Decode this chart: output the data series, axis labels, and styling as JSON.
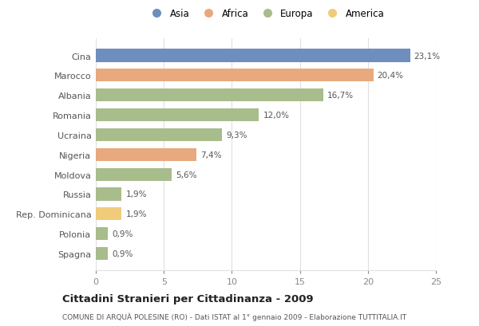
{
  "categories": [
    "Cina",
    "Marocco",
    "Albania",
    "Romania",
    "Ucraina",
    "Nigeria",
    "Moldova",
    "Russia",
    "Rep. Dominicana",
    "Polonia",
    "Spagna"
  ],
  "values": [
    23.1,
    20.4,
    16.7,
    12.0,
    9.3,
    7.4,
    5.6,
    1.9,
    1.9,
    0.9,
    0.9
  ],
  "labels": [
    "23,1%",
    "20,4%",
    "16,7%",
    "12,0%",
    "9,3%",
    "7,4%",
    "5,6%",
    "1,9%",
    "1,9%",
    "0,9%",
    "0,9%"
  ],
  "colors": [
    "#6e8fbe",
    "#e8a97e",
    "#a8bc8c",
    "#a8bc8c",
    "#a8bc8c",
    "#e8a97e",
    "#a8bc8c",
    "#a8bc8c",
    "#f0cc7a",
    "#a8bc8c",
    "#a8bc8c"
  ],
  "legend_labels": [
    "Asia",
    "Africa",
    "Europa",
    "America"
  ],
  "legend_colors": [
    "#6e8fbe",
    "#e8a97e",
    "#a8bc8c",
    "#f0cc7a"
  ],
  "title": "Cittadini Stranieri per Cittadinanza - 2009",
  "subtitle": "COMUNE DI ARQUÀ POLESINE (RO) - Dati ISTAT al 1° gennaio 2009 - Elaborazione TUTTITALIA.IT",
  "xlim": [
    0,
    25
  ],
  "xticks": [
    0,
    5,
    10,
    15,
    20,
    25
  ],
  "background_color": "#ffffff",
  "grid_color": "#e0e0e0"
}
